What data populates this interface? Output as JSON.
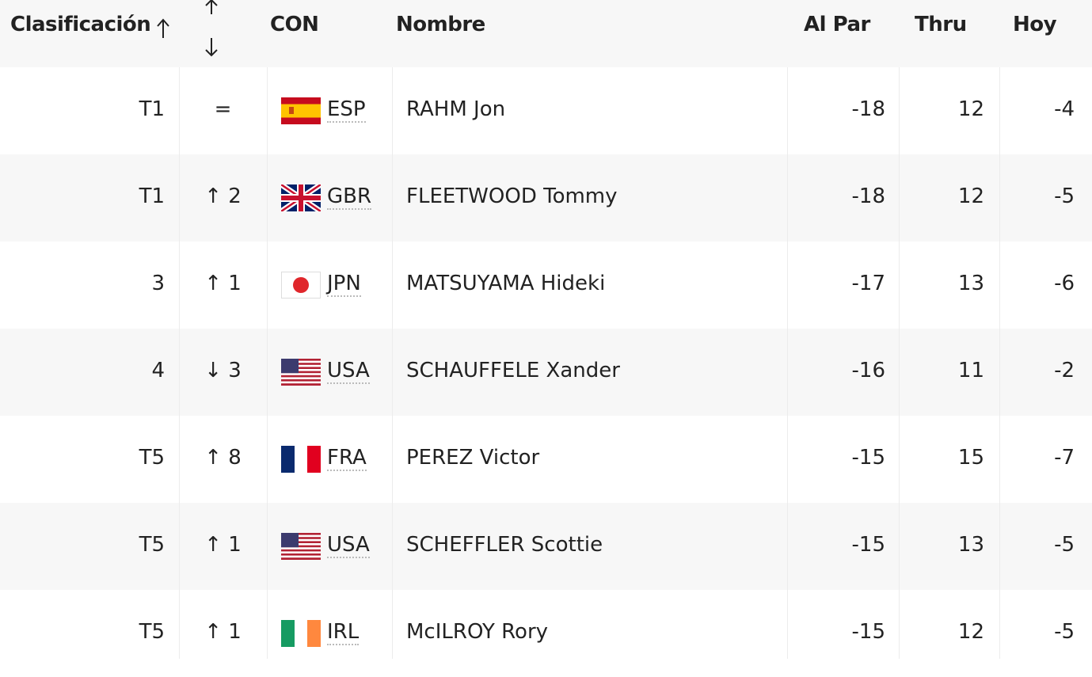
{
  "header": {
    "columns": [
      "Clasificación",
      "CON",
      "Nombre",
      "Al Par",
      "Thru",
      "Hoy"
    ]
  },
  "table": {
    "rows": [
      [
        "T1",
        "=",
        "ESP",
        "RAHM Jon",
        "-18",
        "12",
        "-4"
      ],
      [
        "T1",
        "↑ 2",
        "GBR",
        "FLEETWOOD Tommy",
        "-18",
        "12",
        "-5"
      ],
      [
        "3",
        "↑ 1",
        "JPN",
        "MATSUYAMA Hideki",
        "-17",
        "13",
        "-6"
      ],
      [
        "4",
        "↓ 3",
        "USA",
        "SCHAUFFELE Xander",
        "-16",
        "11",
        "-2"
      ],
      [
        "T5",
        "↑ 8",
        "FRA",
        "PEREZ Victor",
        "-15",
        "15",
        "-7"
      ],
      [
        "T5",
        "↑ 1",
        "USA",
        "SCHEFFLER Scottie",
        "-15",
        "13",
        "-5"
      ],
      [
        "T5",
        "↑ 1",
        "IRL",
        "McILROY Rory",
        "-15",
        "12",
        "-5"
      ]
    ]
  }
}
